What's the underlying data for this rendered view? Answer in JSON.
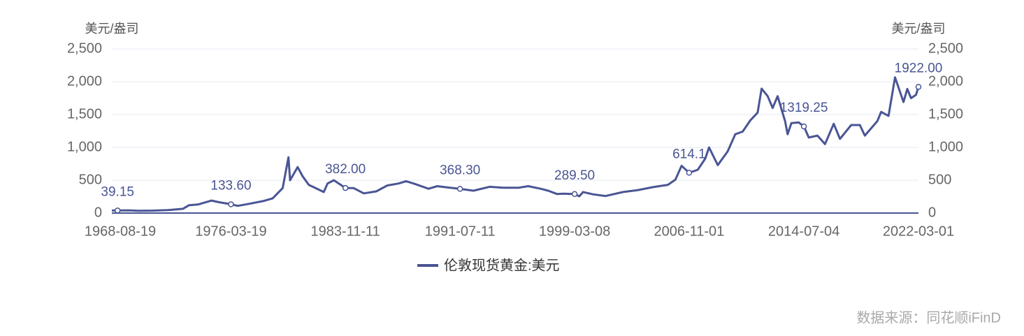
{
  "chart_data": {
    "type": "line",
    "y_axis_label": "美元/盎司",
    "y2_axis_label": "美元/盎司",
    "source": "数据来源：同花顺iFinD",
    "xlim": [
      "1968-04-01",
      "2022-03-01"
    ],
    "xticks": [
      "1968-08-19",
      "1976-03-19",
      "1983-11-11",
      "1991-07-11",
      "1999-03-08",
      "2006-11-01",
      "2014-07-04",
      "2022-03-01"
    ],
    "ylim": [
      0,
      2500
    ],
    "yticks": [
      0,
      500,
      {
        "value": 1000,
        "label": "1,000"
      },
      {
        "value": 1500,
        "label": "1,500"
      },
      {
        "value": 2000,
        "label": "2,000"
      },
      {
        "value": 2500,
        "label": "2,500"
      }
    ],
    "y2lim": [
      0,
      2500
    ],
    "y2ticks": [
      0,
      500,
      {
        "value": 1000,
        "label": "1,000"
      },
      {
        "value": 1500,
        "label": "1,500"
      },
      {
        "value": 2000,
        "label": "2,000"
      },
      {
        "value": 2500,
        "label": "2,500"
      }
    ],
    "grid": true,
    "legend": "bottom",
    "x": [
      "1968-04-01",
      "1968-08-19",
      "1969-06-01",
      "1970-01-01",
      "1971-01-01",
      "1972-01-01",
      "1973-01-01",
      "1973-06-01",
      "1974-01-01",
      "1974-12-01",
      "1975-06-01",
      "1976-03-19",
      "1976-09-01",
      "1977-06-01",
      "1978-06-01",
      "1979-01-01",
      "1979-09-01",
      "1980-01-21",
      "1980-03-01",
      "1980-09-01",
      "1981-01-01",
      "1981-06-01",
      "1982-06-01",
      "1982-09-01",
      "1983-02-01",
      "1983-11-11",
      "1984-06-01",
      "1985-02-01",
      "1985-12-01",
      "1986-09-01",
      "1987-06-01",
      "1987-12-01",
      "1988-06-01",
      "1989-06-01",
      "1990-01-01",
      "1990-09-01",
      "1991-07-11",
      "1992-06-01",
      "1993-07-01",
      "1994-06-01",
      "1995-06-01",
      "1996-02-01",
      "1996-12-01",
      "1997-06-01",
      "1998-01-01",
      "1998-06-01",
      "1999-03-08",
      "1999-07-01",
      "1999-10-01",
      "2000-06-01",
      "2001-04-01",
      "2002-06-01",
      "2003-06-01",
      "2004-06-01",
      "2005-06-01",
      "2005-12-01",
      "2006-05-01",
      "2006-11-01",
      "2007-06-01",
      "2007-12-01",
      "2008-03-01",
      "2008-10-01",
      "2009-06-01",
      "2009-12-01",
      "2010-06-01",
      "2010-12-01",
      "2011-06-01",
      "2011-09-06",
      "2012-02-01",
      "2012-06-01",
      "2012-10-01",
      "2013-04-01",
      "2013-06-01",
      "2013-09-01",
      "2014-03-01",
      "2014-07-04",
      "2014-11-01",
      "2015-06-01",
      "2015-12-01",
      "2016-07-01",
      "2016-12-01",
      "2017-09-01",
      "2018-04-01",
      "2018-08-01",
      "2019-06-01",
      "2019-09-01",
      "2020-03-01",
      "2020-08-06",
      "2021-03-01",
      "2021-06-01",
      "2021-09-01",
      "2022-01-01",
      "2022-03-01"
    ],
    "series": [
      {
        "name": "伦敦现货黄金:美元",
        "color": "#4a5594",
        "values": [
          38,
          39.15,
          41,
          35,
          37,
          45,
          65,
          120,
          130,
          190,
          165,
          133.6,
          110,
          140,
          185,
          225,
          380,
          850,
          500,
          700,
          560,
          430,
          320,
          450,
          500,
          382,
          380,
          300,
          330,
          420,
          450,
          485,
          450,
          370,
          410,
          390,
          368.3,
          340,
          400,
          385,
          385,
          410,
          370,
          340,
          290,
          295,
          289.5,
          255,
          320,
          285,
          260,
          320,
          350,
          395,
          430,
          510,
          720,
          614.1,
          660,
          830,
          1000,
          730,
          940,
          1200,
          1240,
          1410,
          1530,
          1895,
          1780,
          1600,
          1780,
          1400,
          1200,
          1370,
          1380,
          1319.25,
          1150,
          1180,
          1050,
          1360,
          1130,
          1340,
          1340,
          1180,
          1400,
          1540,
          1480,
          2067,
          1690,
          1890,
          1750,
          1800,
          1922
        ]
      }
    ],
    "annotations": [
      {
        "x": "1968-08-19",
        "value": 39.15,
        "label": "39.15"
      },
      {
        "x": "1976-03-19",
        "value": 133.6,
        "label": "133.60"
      },
      {
        "x": "1983-11-11",
        "value": 382,
        "label": "382.00"
      },
      {
        "x": "1991-07-11",
        "value": 368.3,
        "label": "368.30"
      },
      {
        "x": "1999-03-08",
        "value": 289.5,
        "label": "289.50"
      },
      {
        "x": "2006-11-01",
        "value": 614.1,
        "label": "614.1"
      },
      {
        "x": "2014-07-04",
        "value": 1319.25,
        "label": "1319.25"
      },
      {
        "x": "2022-03-01",
        "value": 1922,
        "label": "1922.00"
      }
    ]
  }
}
